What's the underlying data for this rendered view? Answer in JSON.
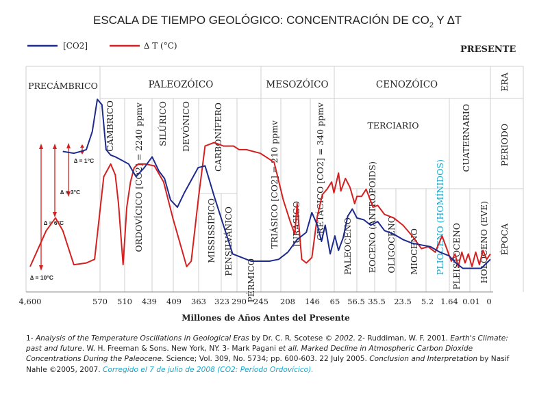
{
  "title": {
    "main": "ESCALA DE TIEMPO GEOLÓGICO: CONCENTRACIÓN DE CO",
    "sub": "2",
    "tail": " Y ∆T"
  },
  "legend": [
    {
      "label": "[CO2]",
      "color": "#1c2a8c"
    },
    {
      "label": "∆ T (°C)",
      "color": "#d42020"
    }
  ],
  "presente_label": "PRESENTE",
  "right_labels": {
    "era": "ERA",
    "periodo": "PERIODO",
    "epoca": "ÉPOCA"
  },
  "eras": [
    {
      "name": "PRECÁMBRICO"
    },
    {
      "name": "PALEOZÓICO"
    },
    {
      "name": "MESOZÓICO"
    },
    {
      "name": "CENOZÓICO"
    }
  ],
  "periods": [
    {
      "name": "CÁMBRICO"
    },
    {
      "name": "ORDOVÍCICO [CO2] = 2240 ppmv"
    },
    {
      "name": "SILÚRICO"
    },
    {
      "name": "DEVÓNICO"
    },
    {
      "name": "CARBONÍFERO"
    },
    {
      "name": "MISSISSÍPICO"
    },
    {
      "name": "PENSILVÁNICO"
    },
    {
      "name": "PÉRMICO"
    },
    {
      "name": "TRIÁSICO [CO2] = 210 ppmv"
    },
    {
      "name": "JURÁSICO"
    },
    {
      "name": "CRETÁCICO [CO2] = 340 ppmv"
    },
    {
      "name": "TERCIARIO"
    },
    {
      "name": "CUATERNARIO"
    }
  ],
  "epochs": [
    {
      "name": "PALEOCENO",
      "color": "#222222"
    },
    {
      "name": "EOCENO (ANTROPOIDS)",
      "color": "#222222"
    },
    {
      "name": "OLIGOCENO",
      "color": "#222222"
    },
    {
      "name": "MIOCENO",
      "color": "#222222"
    },
    {
      "name": "PLIOCENO (HOMÍNIDOS)",
      "color": "#1aa6c8"
    },
    {
      "name": "PLEISTOCENO",
      "color": "#222222"
    },
    {
      "name": "HOLOCENO (EVE)",
      "color": "#222222"
    }
  ],
  "delta_labels": [
    "∆ = 1°C",
    "∆ = 3°C",
    "∆ = 6°C",
    "∆ = 10°C"
  ],
  "xaxis": {
    "ticks": [
      "4,600",
      "570",
      "510",
      "439",
      "409",
      "363",
      "323",
      "290",
      "245",
      "208",
      "146",
      "65",
      "56.5",
      "35.5",
      "23.5",
      "5.2",
      "1.64",
      "0.01",
      "0"
    ],
    "label": "Millones de Años Antes del Presente"
  },
  "chart_data": {
    "type": "line",
    "title": "ESCALA DE TIEMPO GEOLÓGICO: CONCENTRACIÓN DE CO2 Y ∆T",
    "xlabel": "Millones de Años Antes del Presente",
    "ylabel": "",
    "note": "x = relative position on the non-linear geological time axis (0 = 4,600 Ma, 100 = present); y = relative level (0 = bottom, 100 = top of plot)",
    "xlim": [
      0,
      100
    ],
    "ylim": [
      0,
      100
    ],
    "series": [
      {
        "name": "[CO2]",
        "x": [
          7.1,
          9.5,
          11,
          12.2,
          13.5,
          14.6,
          15.6,
          16.5,
          17.5,
          18.5,
          20,
          21.4,
          23,
          24.8,
          26.5,
          28,
          29.2,
          30.5,
          32,
          33.5,
          35,
          36.5,
          38,
          40,
          42,
          44,
          46,
          48,
          50,
          52,
          54,
          56,
          58,
          60,
          61.2,
          62.4,
          63.3,
          64.1,
          65.2,
          66.2,
          67,
          68,
          69,
          70,
          71,
          72.5,
          74,
          75.5,
          77,
          79,
          81,
          83,
          85,
          87,
          89,
          91,
          92.5,
          94,
          96,
          98,
          100
        ],
        "y": [
          69,
          68,
          69,
          70,
          80,
          98,
          95,
          70,
          67,
          66,
          64,
          62,
          55,
          60,
          66,
          58,
          54,
          42,
          38,
          46,
          53,
          60,
          61,
          44,
          28,
          12,
          10,
          8,
          8,
          8,
          9,
          13,
          20,
          24,
          35,
          28,
          19,
          28,
          12,
          22,
          14,
          21,
          33,
          37,
          32,
          31,
          28,
          30,
          25,
          23,
          20,
          18,
          17,
          16,
          13,
          11,
          7,
          4,
          4,
          4,
          9
        ]
      },
      {
        "name": "∆ T (°C)",
        "x": [
          0,
          3.5,
          5.5,
          7.1,
          9.5,
          12.2,
          14,
          16,
          17.5,
          18.5,
          19.2,
          20.2,
          21,
          21.8,
          22.6,
          23.5,
          25,
          27,
          29,
          31,
          33,
          34,
          35,
          36.6,
          38,
          40,
          42,
          43,
          44.2,
          45.4,
          47,
          50,
          53,
          55,
          56.5,
          57.5,
          58,
          59,
          60,
          61.2,
          62.4,
          63.5,
          64.5,
          65.5,
          66,
          67,
          67.5,
          68.5,
          69.5,
          70.5,
          71,
          72,
          73,
          74.5,
          75.5,
          77,
          79,
          81,
          83,
          85,
          86.5,
          88,
          89.5,
          90.5,
          91.5,
          92.3,
          93,
          93.8,
          94.5,
          95.2,
          96,
          96.8,
          97.6,
          98.4,
          99.2,
          100
        ],
        "y": [
          5,
          25,
          32,
          25,
          6,
          7,
          9,
          55,
          62,
          56,
          40,
          6,
          38,
          52,
          60,
          62,
          62,
          61,
          52,
          32,
          14,
          5,
          8,
          44,
          72,
          74,
          72,
          72,
          72,
          70,
          70,
          68,
          63,
          42,
          30,
          23,
          40,
          9,
          7,
          10,
          33,
          45,
          48,
          52,
          46,
          57,
          47,
          54,
          49,
          40,
          44,
          44,
          48,
          38,
          39,
          34,
          32,
          28,
          22,
          15,
          16,
          13,
          22,
          15,
          8,
          12,
          5,
          13,
          7,
          12,
          5,
          13,
          6,
          14,
          9,
          12
        ]
      }
    ]
  },
  "references": {
    "r1_num": "1- ",
    "r1_title": "Analysis of the Temperature Oscillations in Geological Eras",
    "r1_rest": " by Dr. C. R. Scotese © ",
    "r1_year": "2002.",
    "r2": " 2- Ruddiman, W. F. 2001. ",
    "r2_title": "Earth's Climate: past and future",
    "r2_rest": ". W. H. Freeman & Sons. New York, NY. 3- Mark Pagani ",
    "r3_etal": "et all. Marked Decline in Atmospheric Carbon Dioxide Concentrations During the Paleocene",
    "r3_rest": ". Science; Vol. 309, No. 5734; pp. 600-603. 22 July 2005. ",
    "r4_title": "Conclusion and Interpretation",
    "r4_rest": " by Nasif Nahle ©2005, 2007. ",
    "correction": "Corregido el 7 de julio de 2008 (CO2: Período Ordovícico)."
  }
}
